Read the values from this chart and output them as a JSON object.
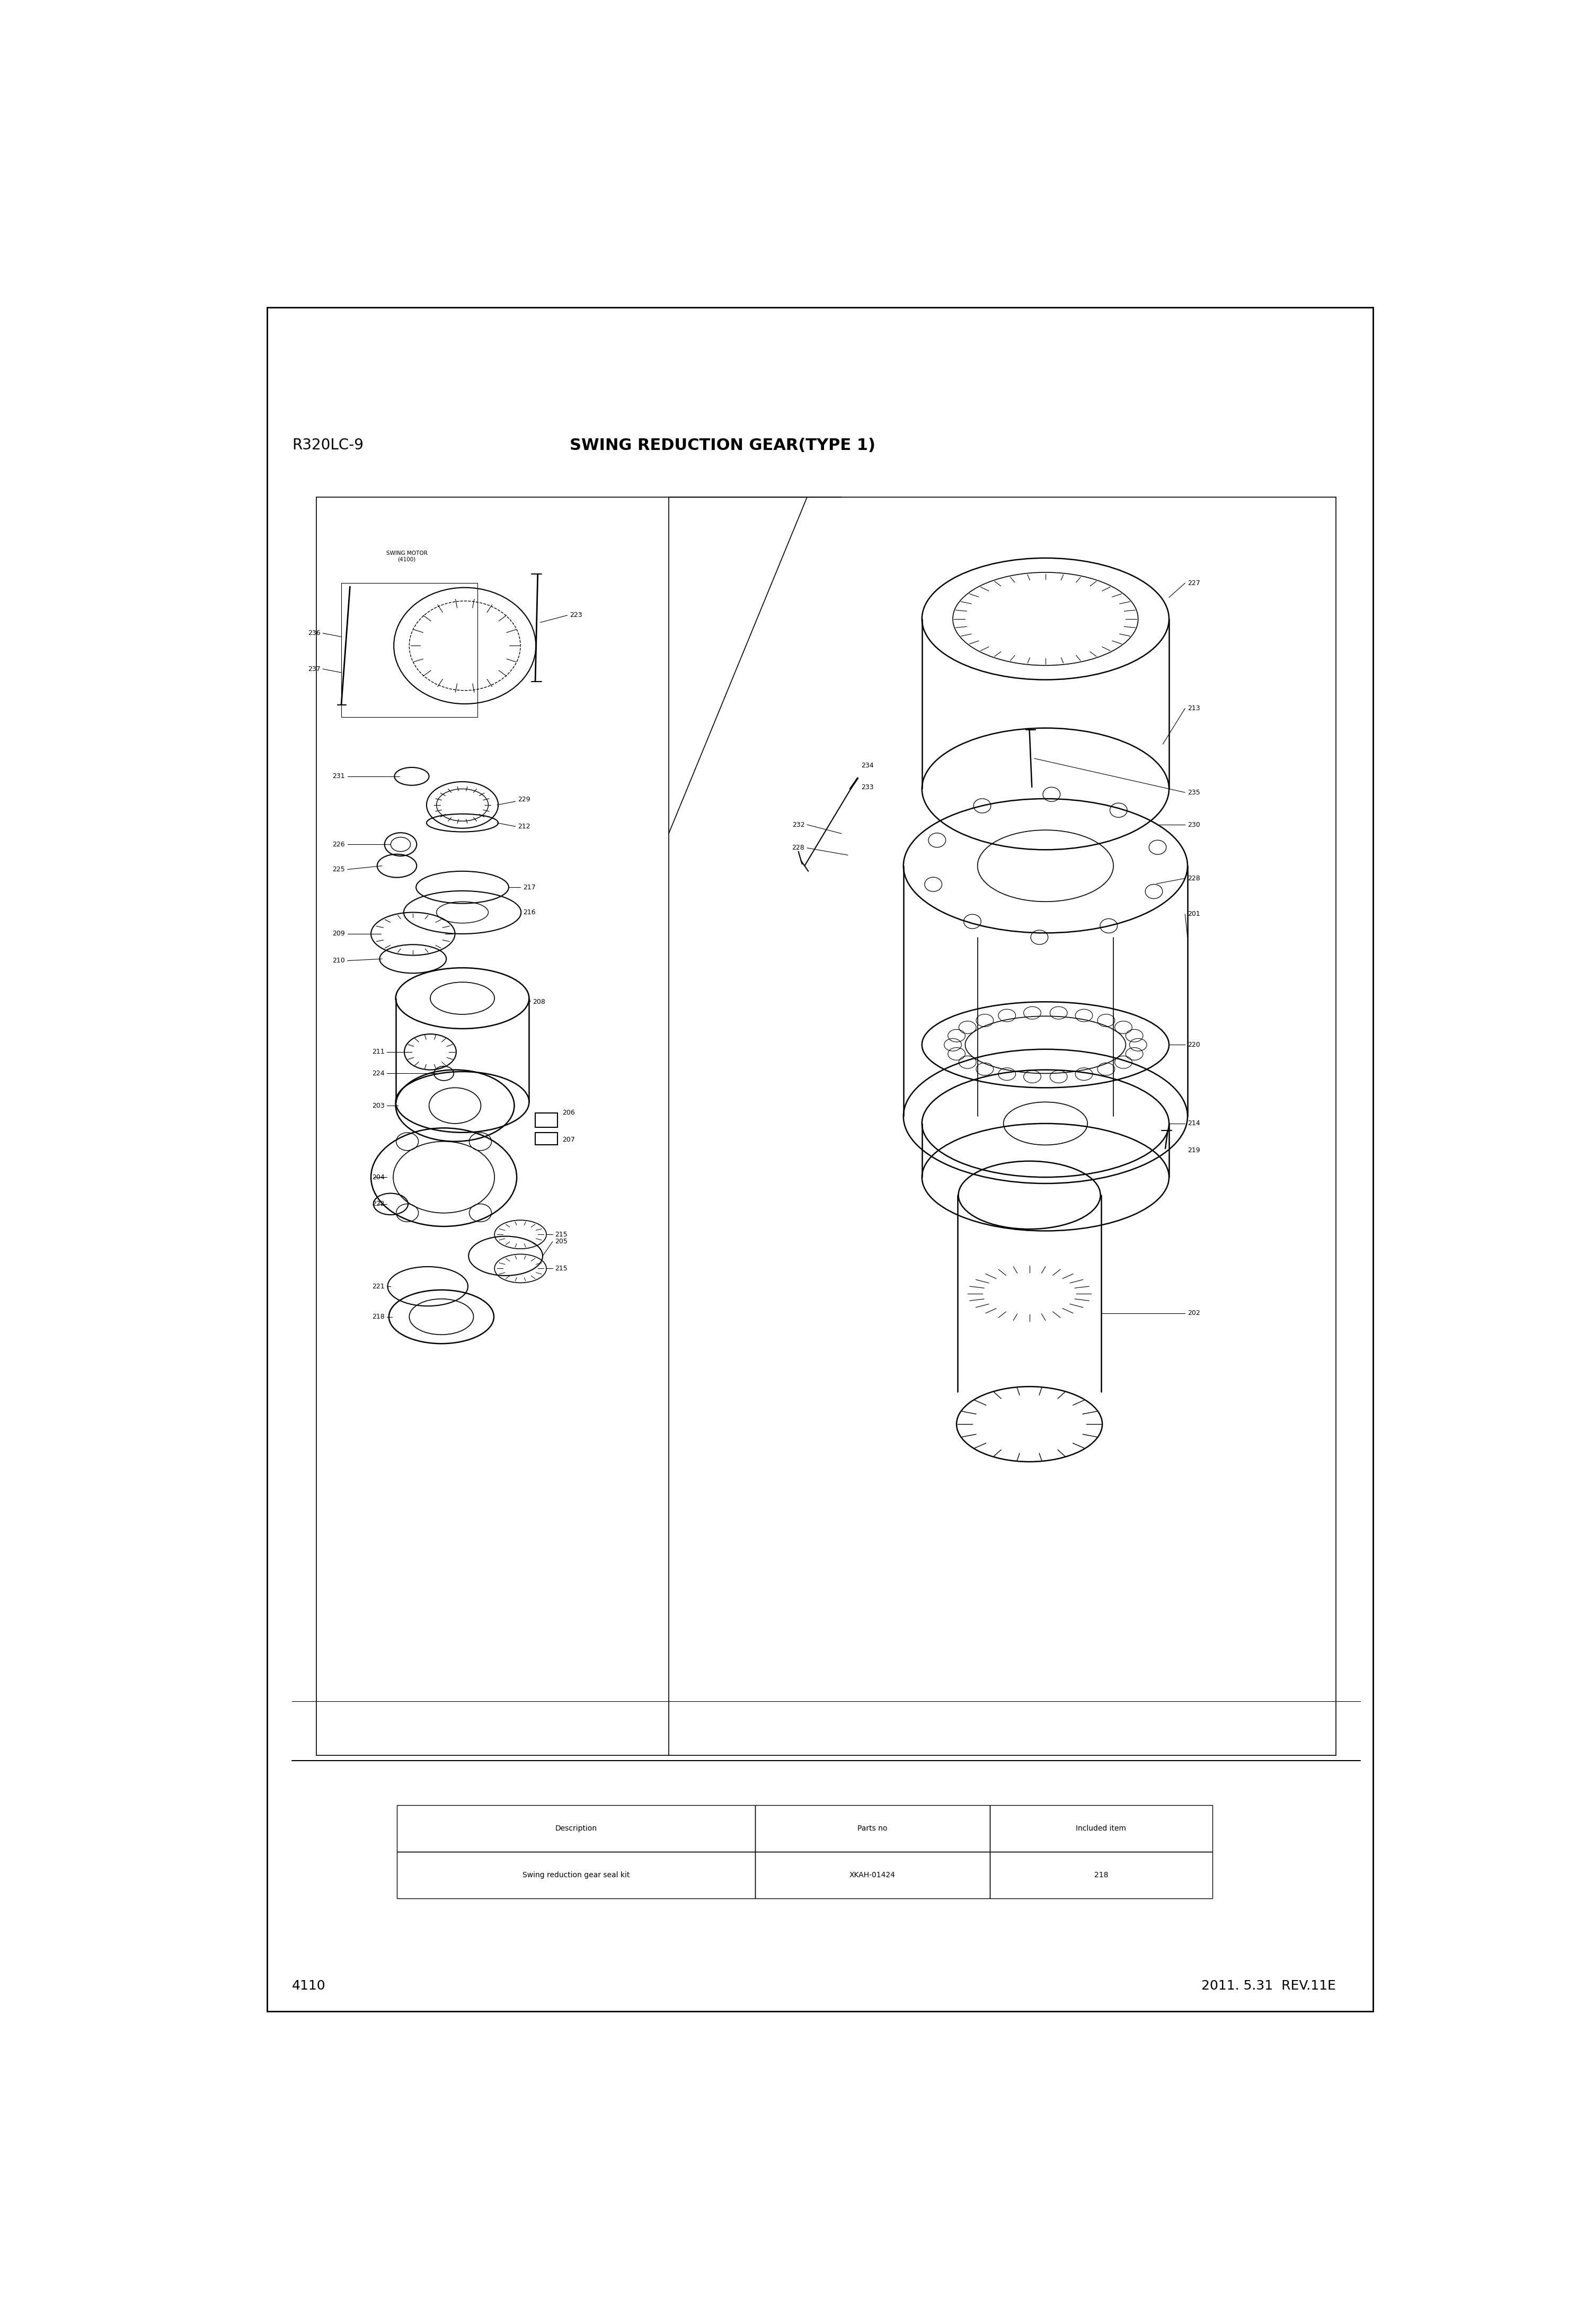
{
  "title": "SWING REDUCTION GEAR(TYPE 1)",
  "model": "R320LC-9",
  "page_num": "4110",
  "date_rev": "2011. 5.31  REV.11E",
  "bg_color": "#ffffff",
  "text_color": "#000000",
  "table": {
    "headers": [
      "Description",
      "Parts no",
      "Included item"
    ],
    "rows": [
      [
        "Swing reduction gear seal kit",
        "XKAH-01424",
        "218"
      ]
    ]
  }
}
